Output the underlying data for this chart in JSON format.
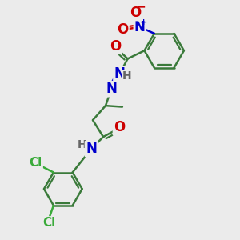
{
  "bg_color": "#ebebeb",
  "bond_color": "#3a7a3a",
  "bond_width": 1.8,
  "atom_colors": {
    "N": "#0000cc",
    "O": "#cc0000",
    "Cl": "#3aaa3a",
    "H": "#666666"
  },
  "font_size_atom": 11,
  "font_size_small": 9
}
